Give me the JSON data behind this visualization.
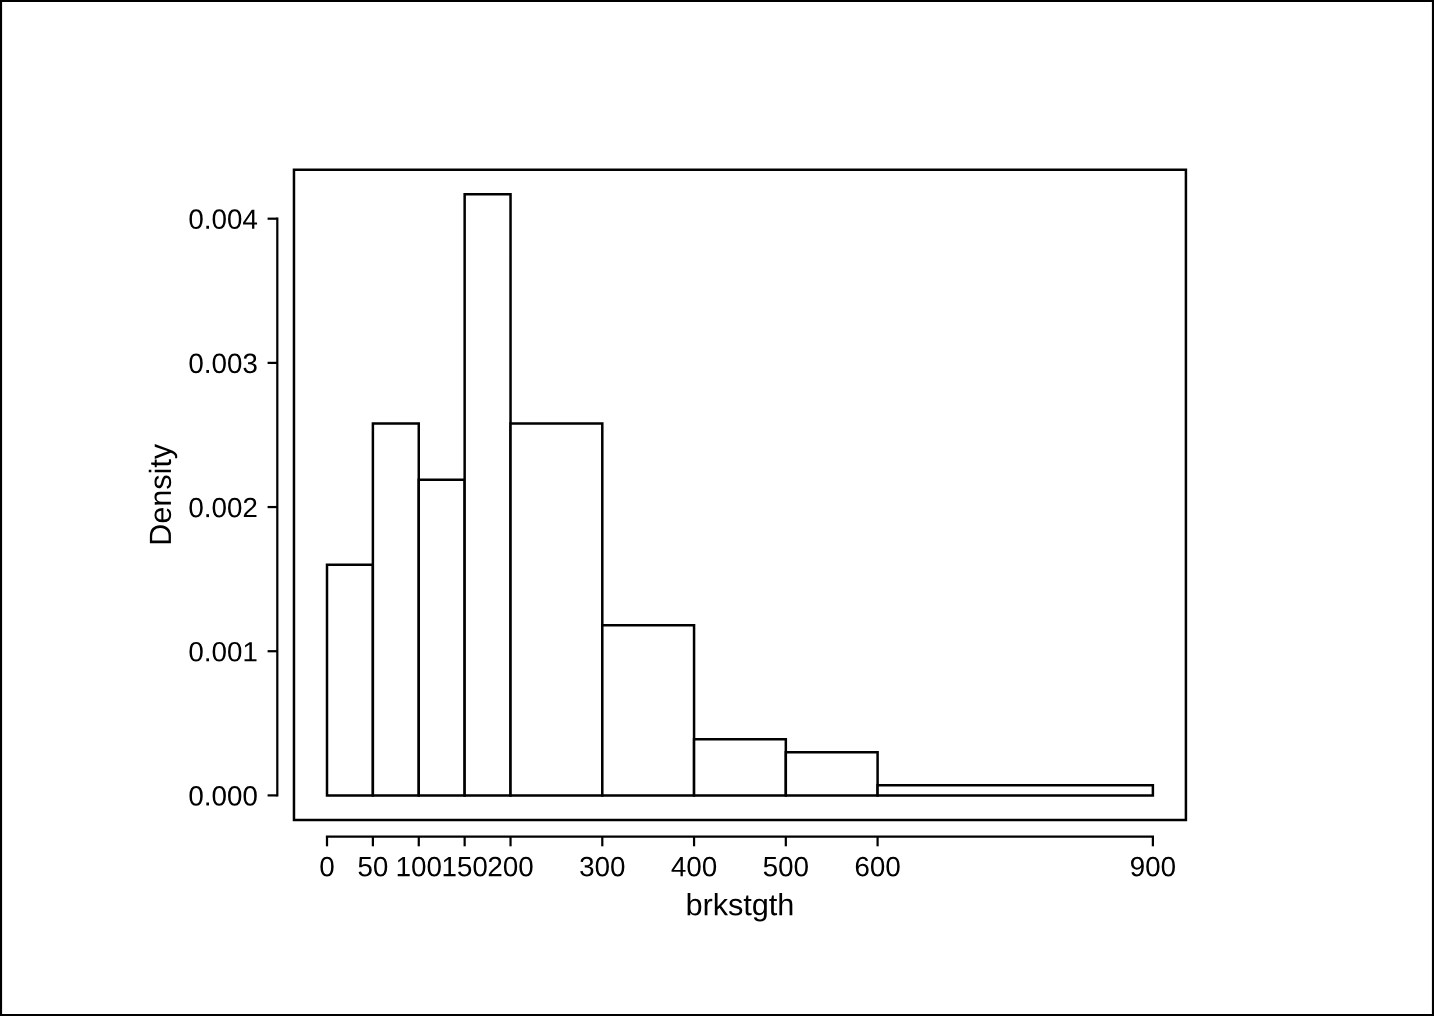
{
  "chart_data": {
    "type": "histogram",
    "xlabel": "brkstgth",
    "ylabel": "Density",
    "bins": [
      0,
      50,
      100,
      150,
      200,
      300,
      400,
      500,
      600,
      900
    ],
    "values": [
      0.0016,
      0.00258,
      0.00219,
      0.00417,
      0.00258,
      0.00118,
      0.00039,
      0.0003,
      7e-05
    ],
    "color": "#ffffff",
    "xlim": [
      -36,
      936
    ],
    "ylim": [
      -0.00017,
      0.00434
    ],
    "xticks": [
      0,
      50,
      100,
      150,
      200,
      300,
      400,
      500,
      600,
      900
    ],
    "yticks": [
      {
        "value": 0,
        "label": "0.000"
      },
      {
        "value": 0.001,
        "label": "0.001"
      },
      {
        "value": 0.002,
        "label": "0.002"
      },
      {
        "value": 0.003,
        "label": "0.003"
      },
      {
        "value": 0.004,
        "label": "0.004"
      }
    ],
    "grid": false
  }
}
